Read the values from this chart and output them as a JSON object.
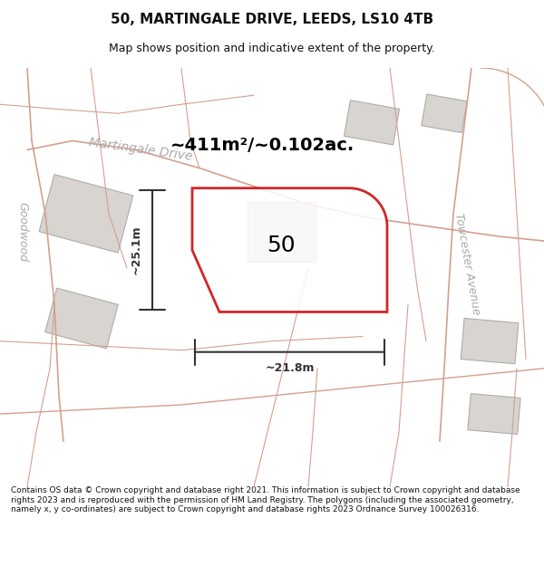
{
  "title": "50, MARTINGALE DRIVE, LEEDS, LS10 4TB",
  "subtitle": "Map shows position and indicative extent of the property.",
  "footer": "Contains OS data © Crown copyright and database right 2021. This information is subject to Crown copyright and database rights 2023 and is reproduced with the permission of HM Land Registry. The polygons (including the associated geometry, namely x, y co-ordinates) are subject to Crown copyright and database rights 2023 Ordnance Survey 100026316.",
  "area_label": "~411m²/~0.102ac.",
  "width_label": "~21.8m",
  "height_label": "~25.1m",
  "number_label": "50",
  "bg_color": "#f0ece8",
  "map_bg": "#f5f2ef",
  "road_color": "#e8d0c8",
  "road_outline": "#d4a090",
  "building_color": "#d8d4d0",
  "building_outline": "#b0aca8",
  "property_color": "white",
  "property_outline": "#cc0000",
  "street_label_color": "#aaaaaa",
  "dim_color": "#333333",
  "title_color": "#111111",
  "footer_color": "#111111"
}
